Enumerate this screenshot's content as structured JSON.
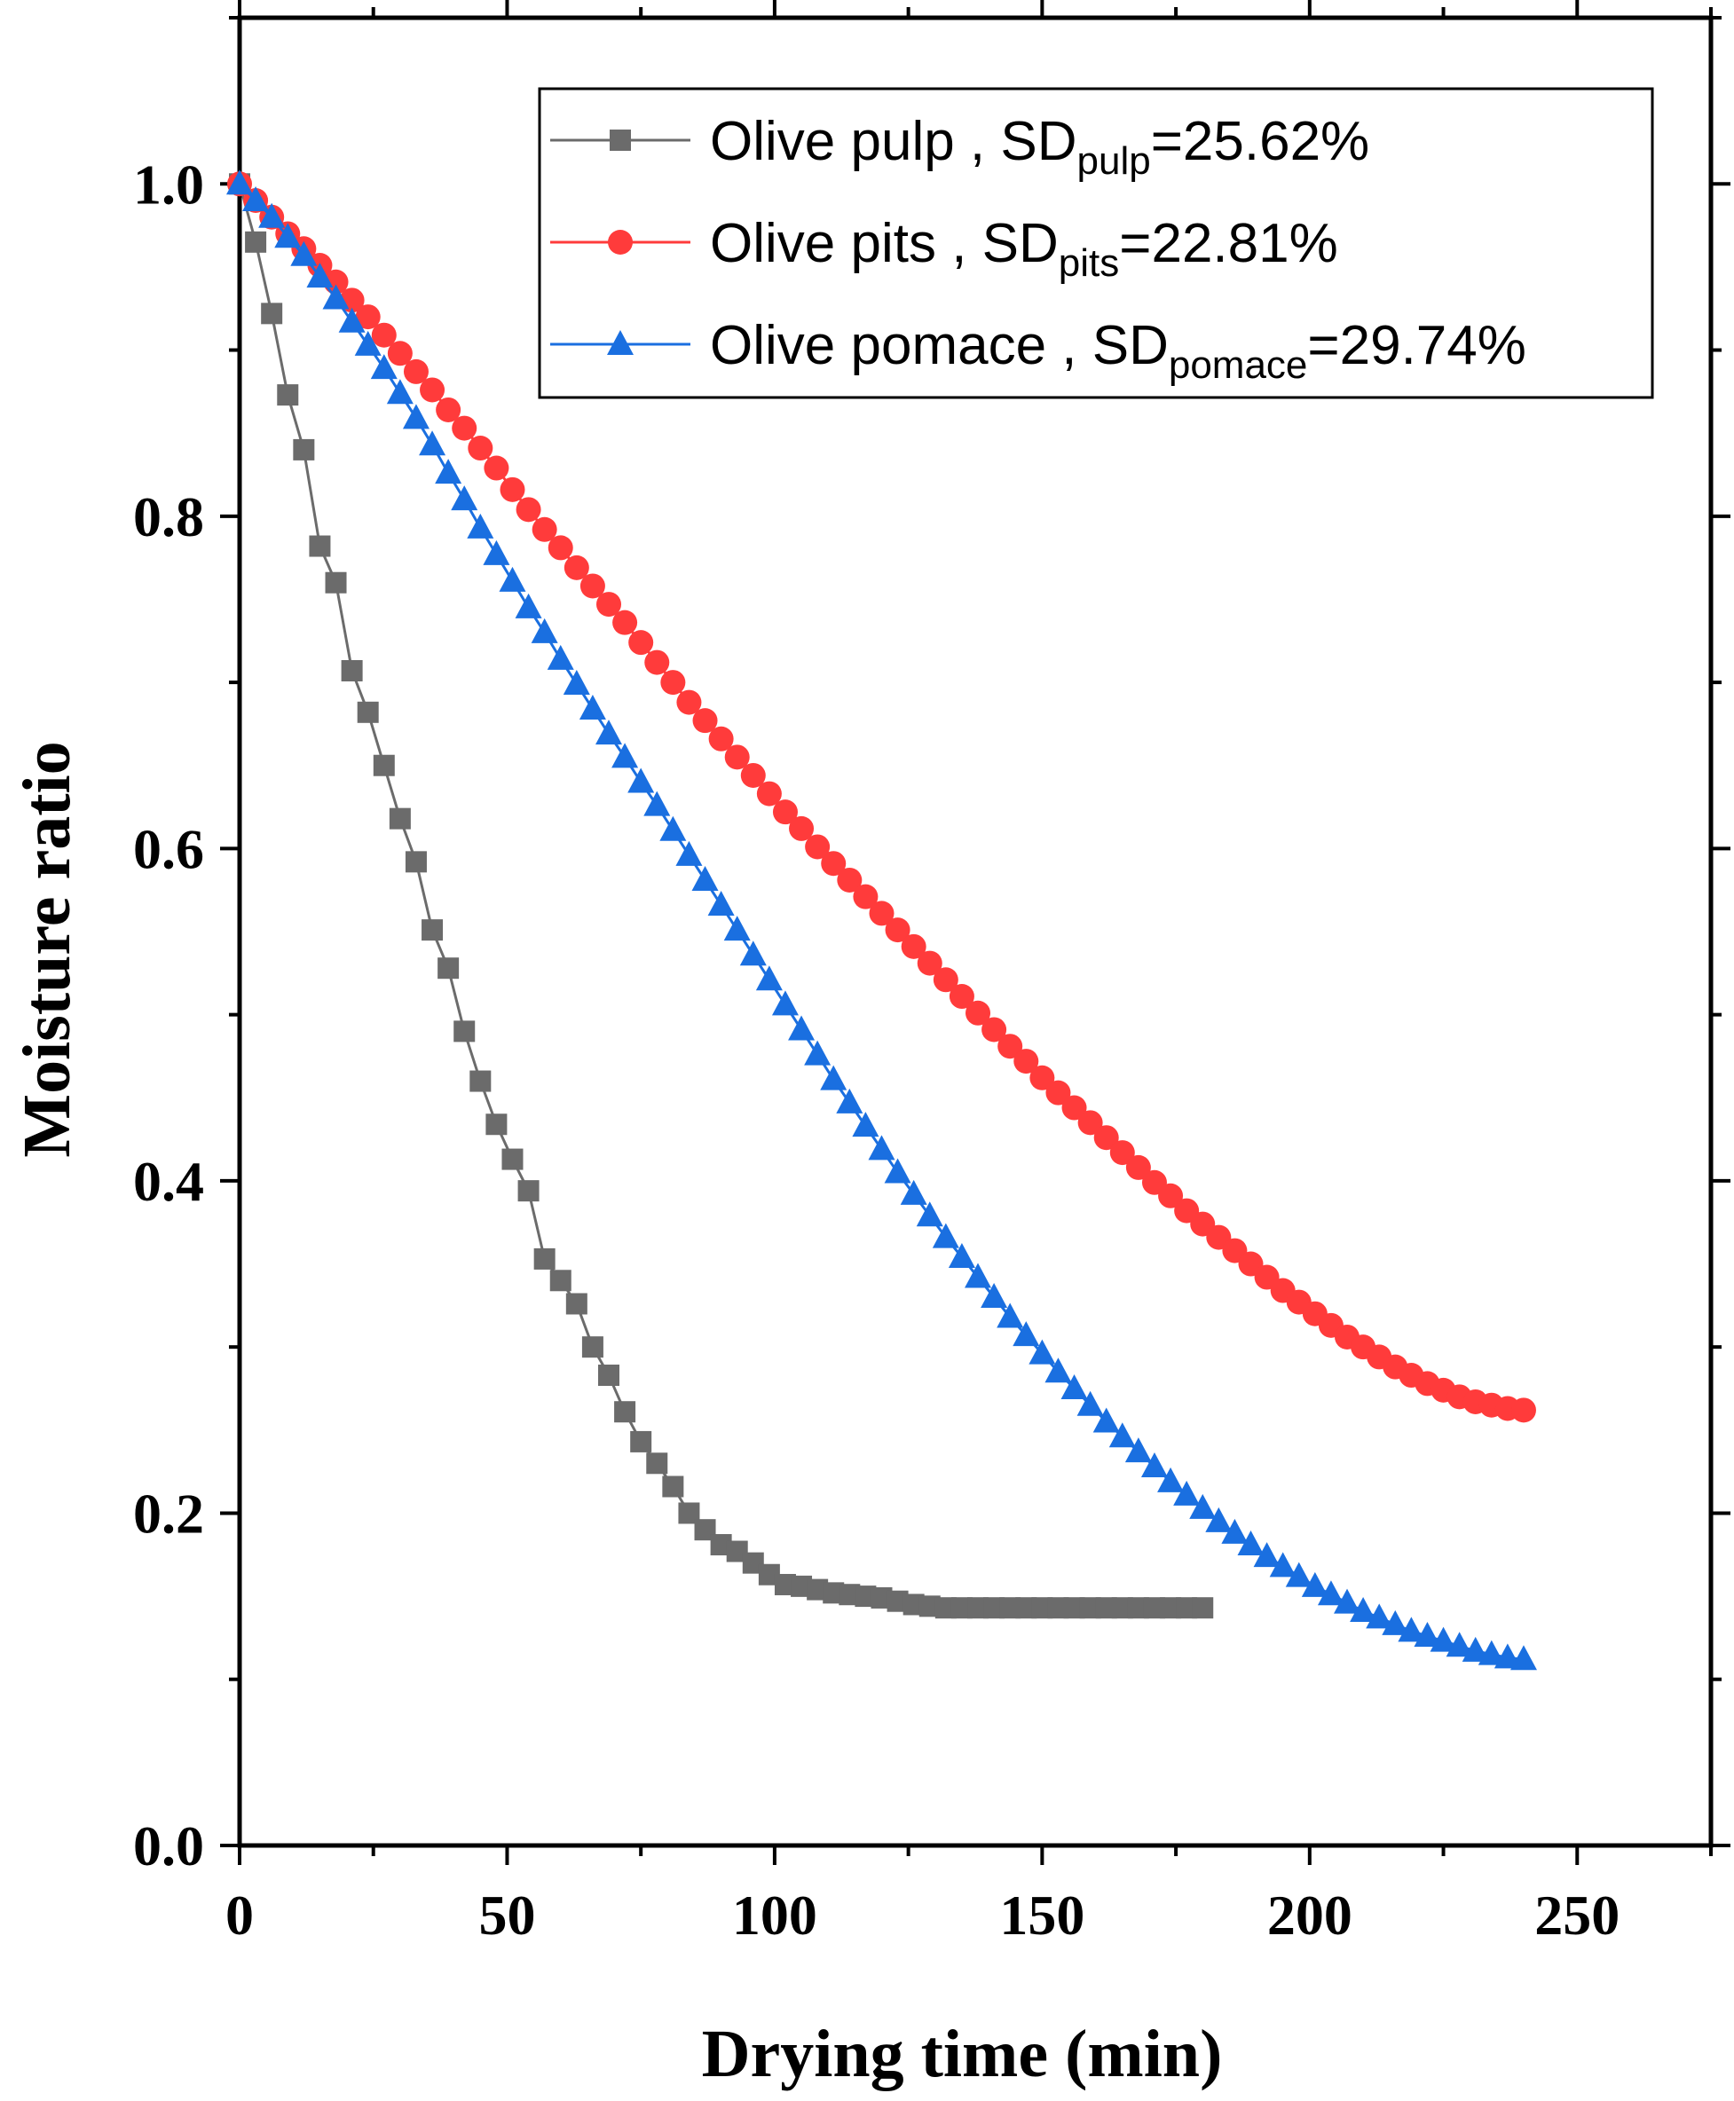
{
  "chart_data": {
    "type": "line",
    "title": "",
    "xlabel": "Drying time (min)",
    "ylabel": "Moisture ratio",
    "xlim": [
      0,
      275
    ],
    "ylim": [
      0,
      1.1
    ],
    "xticks": [
      0,
      50,
      100,
      150,
      200,
      250
    ],
    "yticks": [
      0.0,
      0.2,
      0.4,
      0.6,
      0.8,
      1.0
    ],
    "xtick_labels": [
      "0",
      "50",
      "100",
      "150",
      "200",
      "250"
    ],
    "ytick_labels": [
      "0.0",
      "0.2",
      "0.4",
      "0.6",
      "0.8",
      "1.0"
    ],
    "grid": false,
    "legend_position": "top-right",
    "series": [
      {
        "name": "Olive pulp",
        "legend_prefix": "Olive pulp , SD",
        "legend_sub": "pulp",
        "legend_suffix": "=25.62%",
        "color": "#6b6b6b",
        "marker": "square",
        "x": [
          0,
          3,
          6,
          9,
          12,
          15,
          18,
          21,
          24,
          27,
          30,
          33,
          36,
          39,
          42,
          45,
          48,
          51,
          54,
          57,
          60,
          63,
          66,
          69,
          72,
          75,
          78,
          81,
          84,
          87,
          90,
          93,
          96,
          99,
          102,
          105,
          108,
          111,
          114,
          117,
          120,
          123,
          126,
          129,
          132,
          135,
          138,
          141,
          144,
          147,
          150,
          153,
          156,
          159,
          162,
          165,
          168,
          171,
          174,
          177,
          180
        ],
        "y": [
          1.0,
          0.965,
          0.922,
          0.873,
          0.84,
          0.782,
          0.76,
          0.707,
          0.682,
          0.65,
          0.618,
          0.592,
          0.551,
          0.528,
          0.49,
          0.46,
          0.434,
          0.413,
          0.394,
          0.353,
          0.34,
          0.326,
          0.3,
          0.283,
          0.261,
          0.243,
          0.23,
          0.216,
          0.2,
          0.19,
          0.181,
          0.177,
          0.17,
          0.163,
          0.157,
          0.156,
          0.154,
          0.152,
          0.151,
          0.15,
          0.149,
          0.147,
          0.145,
          0.144,
          0.143,
          0.143,
          0.143,
          0.143,
          0.143,
          0.143,
          0.143,
          0.143,
          0.143,
          0.143,
          0.143,
          0.143,
          0.143,
          0.143,
          0.143,
          0.143,
          0.143
        ]
      },
      {
        "name": "Olive pits",
        "legend_prefix": "Olive pits , SD",
        "legend_sub": "pits",
        "legend_suffix": "=22.81%",
        "color": "#ff3b3b",
        "marker": "circle",
        "x": [
          0,
          3,
          6,
          9,
          12,
          15,
          18,
          21,
          24,
          27,
          30,
          33,
          36,
          39,
          42,
          45,
          48,
          51,
          54,
          57,
          60,
          63,
          66,
          69,
          72,
          75,
          78,
          81,
          84,
          87,
          90,
          93,
          96,
          99,
          102,
          105,
          108,
          111,
          114,
          117,
          120,
          123,
          126,
          129,
          132,
          135,
          138,
          141,
          144,
          147,
          150,
          153,
          156,
          159,
          162,
          165,
          168,
          171,
          174,
          177,
          180,
          183,
          186,
          189,
          192,
          195,
          198,
          201,
          204,
          207,
          210,
          213,
          216,
          219,
          222,
          225,
          228,
          231,
          234,
          237,
          240
        ],
        "y": [
          1.0,
          0.99,
          0.98,
          0.97,
          0.961,
          0.951,
          0.941,
          0.93,
          0.92,
          0.909,
          0.898,
          0.887,
          0.876,
          0.864,
          0.853,
          0.841,
          0.829,
          0.816,
          0.804,
          0.792,
          0.781,
          0.769,
          0.758,
          0.747,
          0.736,
          0.724,
          0.712,
          0.7,
          0.688,
          0.677,
          0.666,
          0.655,
          0.644,
          0.633,
          0.622,
          0.612,
          0.601,
          0.591,
          0.581,
          0.571,
          0.561,
          0.551,
          0.541,
          0.531,
          0.521,
          0.511,
          0.501,
          0.491,
          0.481,
          0.472,
          0.462,
          0.453,
          0.444,
          0.435,
          0.426,
          0.417,
          0.408,
          0.399,
          0.391,
          0.382,
          0.374,
          0.366,
          0.358,
          0.35,
          0.342,
          0.334,
          0.327,
          0.32,
          0.313,
          0.306,
          0.3,
          0.294,
          0.288,
          0.283,
          0.278,
          0.274,
          0.27,
          0.267,
          0.265,
          0.263,
          0.262
        ]
      },
      {
        "name": "Olive pomace",
        "legend_prefix": "Olive pomace , SD",
        "legend_sub": "pomace",
        "legend_suffix": "=29.74%",
        "color": "#1a6fe0",
        "marker": "triangle",
        "x": [
          0,
          3,
          6,
          9,
          12,
          15,
          18,
          21,
          24,
          27,
          30,
          33,
          36,
          39,
          42,
          45,
          48,
          51,
          54,
          57,
          60,
          63,
          66,
          69,
          72,
          75,
          78,
          81,
          84,
          87,
          90,
          93,
          96,
          99,
          102,
          105,
          108,
          111,
          114,
          117,
          120,
          123,
          126,
          129,
          132,
          135,
          138,
          141,
          144,
          147,
          150,
          153,
          156,
          159,
          162,
          165,
          168,
          171,
          174,
          177,
          180,
          183,
          186,
          189,
          192,
          195,
          198,
          201,
          204,
          207,
          210,
          213,
          216,
          219,
          222,
          225,
          228,
          231,
          234,
          237,
          240
        ],
        "y": [
          1.0,
          0.99,
          0.98,
          0.968,
          0.957,
          0.944,
          0.931,
          0.917,
          0.903,
          0.889,
          0.874,
          0.859,
          0.843,
          0.826,
          0.81,
          0.793,
          0.777,
          0.761,
          0.745,
          0.73,
          0.714,
          0.699,
          0.684,
          0.669,
          0.655,
          0.64,
          0.626,
          0.611,
          0.596,
          0.581,
          0.566,
          0.551,
          0.536,
          0.521,
          0.506,
          0.491,
          0.476,
          0.461,
          0.447,
          0.433,
          0.419,
          0.405,
          0.392,
          0.379,
          0.366,
          0.354,
          0.342,
          0.33,
          0.318,
          0.307,
          0.296,
          0.285,
          0.275,
          0.265,
          0.255,
          0.246,
          0.237,
          0.228,
          0.219,
          0.211,
          0.203,
          0.195,
          0.188,
          0.181,
          0.174,
          0.168,
          0.162,
          0.156,
          0.151,
          0.146,
          0.141,
          0.137,
          0.133,
          0.129,
          0.126,
          0.123,
          0.12,
          0.117,
          0.115,
          0.113,
          0.112
        ]
      }
    ]
  }
}
